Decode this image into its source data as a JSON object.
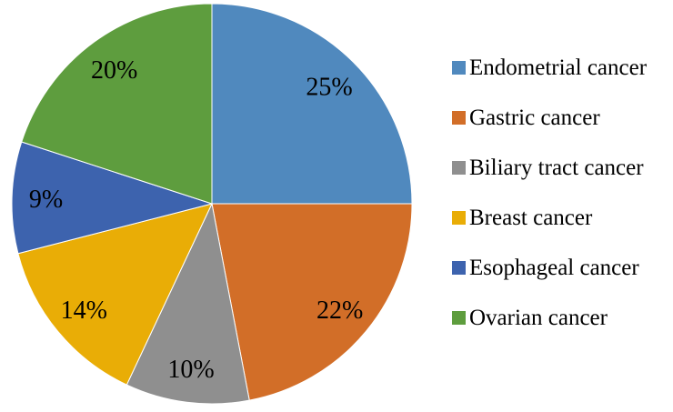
{
  "chart_data": {
    "type": "pie",
    "title": "",
    "categories": [
      "Endometrial cancer",
      "Gastric cancer",
      "Biliary tract cancer",
      "Breast cancer",
      "Esophageal cancer",
      "Ovarian cancer"
    ],
    "values": [
      25,
      22,
      10,
      14,
      9,
      20
    ],
    "slice_labels": [
      "25%",
      "22%",
      "10%",
      "14%",
      "9%",
      "20%"
    ],
    "colors": [
      "#5089BE",
      "#D26E28",
      "#8F8F8F",
      "#E9AD06",
      "#3D63AE",
      "#5E9D3E"
    ],
    "start_angle_deg": 0,
    "direction": "clockwise",
    "legend_position": "right",
    "label_color": "#000000",
    "slice_border_color": "#ffffff"
  }
}
